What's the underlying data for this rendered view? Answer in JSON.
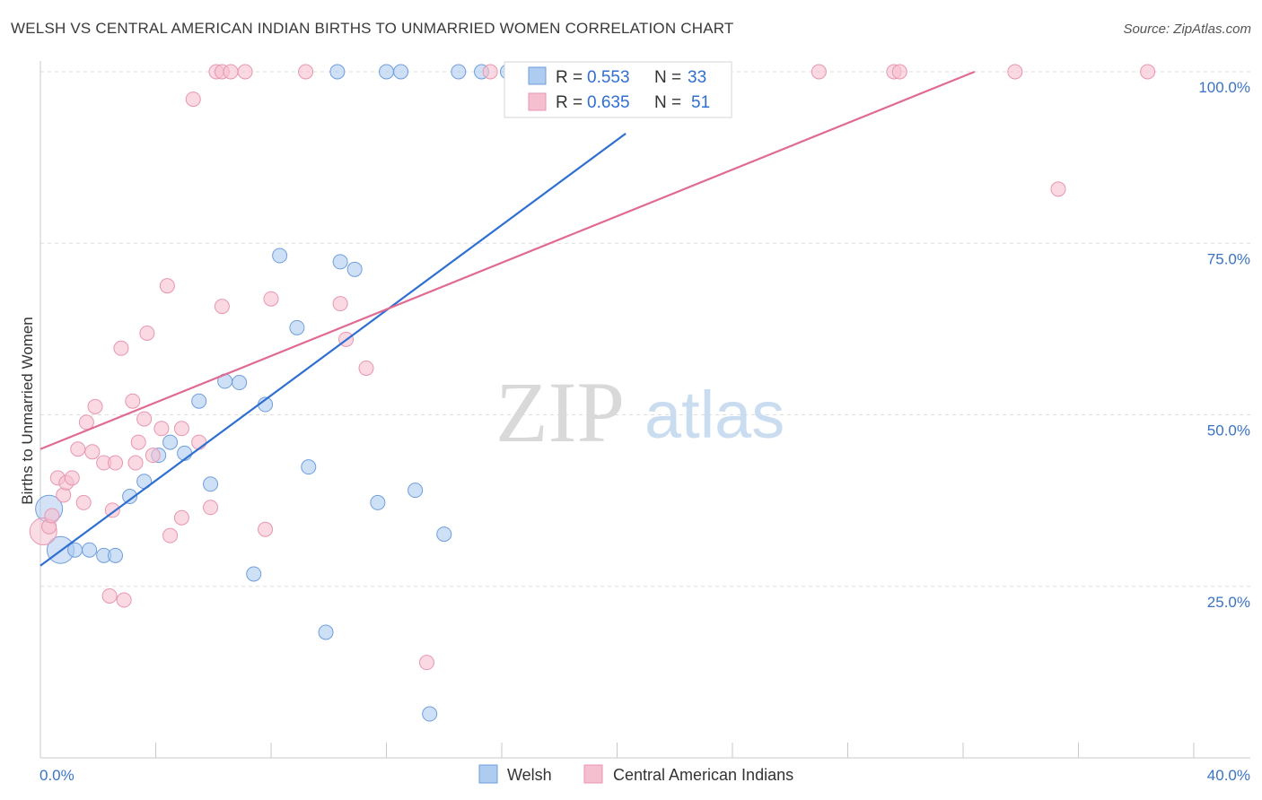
{
  "header": {
    "title": "WELSH VS CENTRAL AMERICAN INDIAN BIRTHS TO UNMARRIED WOMEN CORRELATION CHART",
    "source": "Source: ZipAtlas.com"
  },
  "watermark": {
    "zip": "ZIP",
    "atlas": "atlas"
  },
  "colors": {
    "welsh_fill": "#aecbf0",
    "welsh_stroke": "#6f9edc",
    "welsh_line": "#2f6fd1",
    "cai_fill": "#f6bfd0",
    "cai_stroke": "#e896b0",
    "cai_line": "#e06a93",
    "tick_text": "#3a74c4",
    "grid": "#dddddd"
  },
  "legend": {
    "rows": [
      {
        "r_label": "R =",
        "r_value": "0.553",
        "n_label": "N =",
        "n_value": "33"
      },
      {
        "r_label": "R =",
        "r_value": "0.635",
        "n_label": "N =",
        "n_value": "51"
      }
    ]
  },
  "bottom_legend": [
    "Welsh",
    "Central American Indians"
  ],
  "chart_data": {
    "type": "scatter",
    "title": "WELSH VS CENTRAL AMERICAN INDIAN BIRTHS TO UNMARRIED WOMEN CORRELATION CHART",
    "xlabel": "",
    "ylabel": "Births to Unmarried Women",
    "xlim": [
      0,
      40
    ],
    "ylim": [
      0,
      100
    ],
    "x_tick_labels": [
      "0.0%",
      "40.0%"
    ],
    "y_ticks": [
      25,
      50,
      75,
      100
    ],
    "y_tick_labels": [
      "25.0%",
      "50.0%",
      "75.0%",
      "100.0%"
    ],
    "grid": true,
    "legend_position": "top-center",
    "series": [
      {
        "name": "Welsh",
        "r": 0.553,
        "n": 33,
        "trend": {
          "x": [
            0,
            20.3
          ],
          "y": [
            28.0,
            91.0
          ]
        },
        "points": [
          {
            "x": 0.3,
            "y": 36.3,
            "big": true
          },
          {
            "x": 0.7,
            "y": 30.3,
            "big": true
          },
          {
            "x": 1.2,
            "y": 30.3
          },
          {
            "x": 1.7,
            "y": 30.3
          },
          {
            "x": 2.2,
            "y": 29.5
          },
          {
            "x": 2.6,
            "y": 29.5
          },
          {
            "x": 3.1,
            "y": 38.1
          },
          {
            "x": 3.6,
            "y": 40.3
          },
          {
            "x": 4.1,
            "y": 44.1
          },
          {
            "x": 4.5,
            "y": 46.0
          },
          {
            "x": 5.0,
            "y": 44.4
          },
          {
            "x": 5.5,
            "y": 52.0
          },
          {
            "x": 5.9,
            "y": 39.9
          },
          {
            "x": 6.4,
            "y": 54.9
          },
          {
            "x": 6.9,
            "y": 54.7
          },
          {
            "x": 7.4,
            "y": 26.8
          },
          {
            "x": 7.8,
            "y": 51.5
          },
          {
            "x": 8.3,
            "y": 73.2
          },
          {
            "x": 8.9,
            "y": 62.7
          },
          {
            "x": 9.3,
            "y": 42.4
          },
          {
            "x": 9.9,
            "y": 18.3
          },
          {
            "x": 10.4,
            "y": 72.3
          },
          {
            "x": 10.9,
            "y": 71.2
          },
          {
            "x": 11.7,
            "y": 37.2
          },
          {
            "x": 13.0,
            "y": 39.0
          },
          {
            "x": 13.5,
            "y": 6.4
          },
          {
            "x": 14.0,
            "y": 32.6
          },
          {
            "x": 10.3,
            "y": 100.0
          },
          {
            "x": 12.0,
            "y": 100.0
          },
          {
            "x": 12.5,
            "y": 100.0
          },
          {
            "x": 14.5,
            "y": 100.0
          },
          {
            "x": 15.3,
            "y": 100.0
          },
          {
            "x": 16.2,
            "y": 100.0
          }
        ]
      },
      {
        "name": "Central American Indians",
        "r": 0.635,
        "n": 51,
        "trend": {
          "x": [
            0,
            32.4
          ],
          "y": [
            45.0,
            100.0
          ]
        },
        "points": [
          {
            "x": 0.1,
            "y": 33.0,
            "big": true
          },
          {
            "x": 0.3,
            "y": 33.7
          },
          {
            "x": 0.4,
            "y": 35.3
          },
          {
            "x": 0.6,
            "y": 40.8
          },
          {
            "x": 0.8,
            "y": 38.3
          },
          {
            "x": 0.9,
            "y": 40.1
          },
          {
            "x": 1.1,
            "y": 40.8
          },
          {
            "x": 1.3,
            "y": 45.0
          },
          {
            "x": 1.5,
            "y": 37.2
          },
          {
            "x": 1.6,
            "y": 48.9
          },
          {
            "x": 1.8,
            "y": 44.6
          },
          {
            "x": 1.9,
            "y": 51.2
          },
          {
            "x": 2.2,
            "y": 43.0
          },
          {
            "x": 2.4,
            "y": 23.6
          },
          {
            "x": 2.5,
            "y": 36.1
          },
          {
            "x": 2.6,
            "y": 43.0
          },
          {
            "x": 2.8,
            "y": 59.7
          },
          {
            "x": 2.9,
            "y": 23.0
          },
          {
            "x": 3.2,
            "y": 52.0
          },
          {
            "x": 3.3,
            "y": 43.0
          },
          {
            "x": 3.4,
            "y": 46.0
          },
          {
            "x": 3.6,
            "y": 49.4
          },
          {
            "x": 3.7,
            "y": 61.9
          },
          {
            "x": 3.9,
            "y": 44.1
          },
          {
            "x": 4.2,
            "y": 48.0
          },
          {
            "x": 4.4,
            "y": 68.8
          },
          {
            "x": 4.5,
            "y": 32.4
          },
          {
            "x": 4.9,
            "y": 35.0
          },
          {
            "x": 4.9,
            "y": 48.0
          },
          {
            "x": 5.3,
            "y": 96.0
          },
          {
            "x": 5.5,
            "y": 46.0
          },
          {
            "x": 5.9,
            "y": 36.5
          },
          {
            "x": 6.3,
            "y": 65.8
          },
          {
            "x": 7.8,
            "y": 33.3
          },
          {
            "x": 8.0,
            "y": 66.9
          },
          {
            "x": 10.4,
            "y": 66.2
          },
          {
            "x": 10.6,
            "y": 61.0
          },
          {
            "x": 11.3,
            "y": 56.8
          },
          {
            "x": 13.4,
            "y": 13.9
          },
          {
            "x": 6.1,
            "y": 100.0
          },
          {
            "x": 6.3,
            "y": 100.0
          },
          {
            "x": 6.6,
            "y": 100.0
          },
          {
            "x": 7.1,
            "y": 100.0
          },
          {
            "x": 9.2,
            "y": 100.0
          },
          {
            "x": 15.6,
            "y": 100.0
          },
          {
            "x": 27.0,
            "y": 100.0
          },
          {
            "x": 29.6,
            "y": 100.0
          },
          {
            "x": 29.8,
            "y": 100.0
          },
          {
            "x": 33.8,
            "y": 100.0
          },
          {
            "x": 38.4,
            "y": 100.0
          },
          {
            "x": 35.3,
            "y": 82.9
          }
        ]
      }
    ]
  }
}
